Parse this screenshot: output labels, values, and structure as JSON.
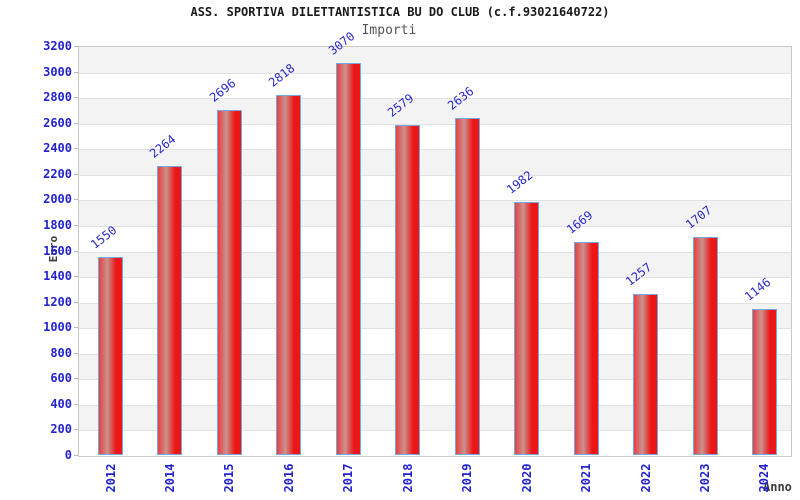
{
  "header": {
    "title": "ASS. SPORTIVA DILETTANTISTICA BU DO CLUB (c.f.93021640722)",
    "subtitle": "Importi"
  },
  "chart_data": {
    "type": "bar",
    "title": "ASS. SPORTIVA DILETTANTISTICA BU DO CLUB (c.f.93021640722)",
    "subtitle": "Importi",
    "xlabel": "Anno",
    "ylabel": "Euro",
    "categories": [
      "2012",
      "2014",
      "2015",
      "2016",
      "2017",
      "2018",
      "2019",
      "2020",
      "2021",
      "2022",
      "2023",
      "2024"
    ],
    "values": [
      1550,
      2264,
      2696,
      2818,
      3070,
      2579,
      2636,
      1982,
      1669,
      1257,
      1707,
      1146
    ],
    "ylim": [
      0,
      3200
    ],
    "ytick_step": 200,
    "grid": true,
    "bar_value_labels": true,
    "legend_position": "none",
    "colors": {
      "axis_label_blue": "#2323cd",
      "value_label_blue": "#2929c8",
      "bar_edge_red": "#e64040",
      "bar_highlight": "#ca928e",
      "bar_main_red": "#ec1616",
      "bar_border_blue": "#72a9e2",
      "band_gray": "#f3f3f3",
      "gridline_gray": "#e2e2e2",
      "frame_gray": "#c9c9c9",
      "subtitle_gray": "#555555",
      "axis_title_gray": "#3a3a3a",
      "title_black": "#1a1a1a"
    }
  }
}
